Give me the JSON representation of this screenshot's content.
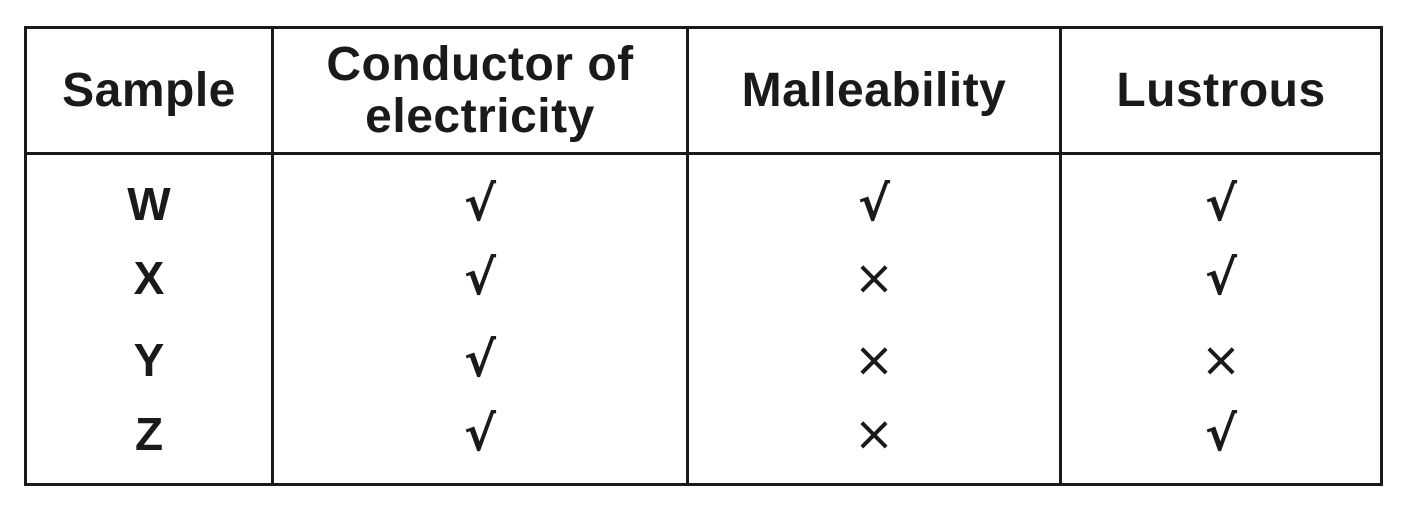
{
  "table": {
    "headers": [
      "Sample",
      "Conductor of electricity",
      "Malleability",
      "Lustrous"
    ],
    "rows": [
      {
        "sample": "W",
        "conductor": "√",
        "malleability": "√",
        "lustrous": "√"
      },
      {
        "sample": "X",
        "conductor": "√",
        "malleability": "×",
        "lustrous": "√"
      },
      {
        "sample": "Y",
        "conductor": "√",
        "malleability": "×",
        "lustrous": "×"
      },
      {
        "sample": "Z",
        "conductor": "√",
        "malleability": "×",
        "lustrous": "√"
      }
    ]
  }
}
